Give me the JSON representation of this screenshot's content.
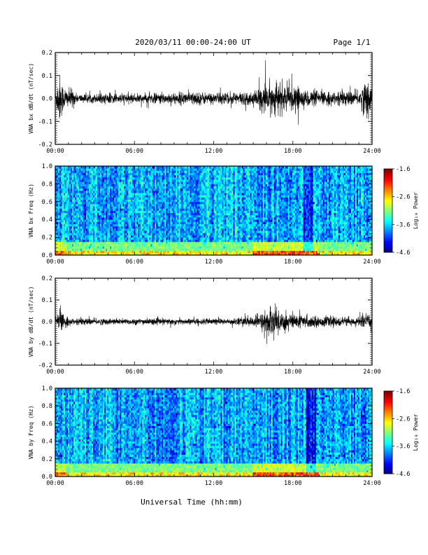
{
  "header": {
    "title": "2020/03/11  00:00-24:00 UT",
    "page": "Page 1/1"
  },
  "xlabel": "Universal Time (hh:mm)",
  "chart_data": [
    {
      "type": "line",
      "ylabel": "VNA bx dB/dt (nT/sec)",
      "ylim": [
        -0.2,
        0.2
      ],
      "yticks": [
        "0.2",
        "0.1",
        "0.0",
        "-0.1",
        "-0.2"
      ],
      "xlim": [
        "00:00",
        "24:00"
      ],
      "xticks": [
        "00:00",
        "06:00",
        "12:00",
        "18:00",
        "24:00"
      ],
      "envelope": {
        "hours": [
          0,
          0.3,
          0.6,
          1.0,
          1.3,
          1.6,
          3,
          5,
          6,
          8,
          10,
          11,
          12,
          13,
          14,
          15,
          15.5,
          16.2,
          17,
          18,
          19,
          20,
          21,
          22,
          23,
          23.7,
          24
        ],
        "amplitude": [
          0.03,
          0.12,
          0.06,
          0.04,
          0.05,
          0.02,
          0.02,
          0.025,
          0.02,
          0.025,
          0.03,
          0.03,
          0.025,
          0.03,
          0.03,
          0.03,
          0.05,
          0.08,
          0.07,
          0.05,
          0.04,
          0.035,
          0.03,
          0.03,
          0.035,
          0.1,
          0.03
        ]
      }
    },
    {
      "type": "heatmap",
      "ylabel": "VNA bx Freq (Hz)",
      "ylim": [
        0.0,
        1.0
      ],
      "yticks": [
        "1.0",
        "0.8",
        "0.6",
        "0.4",
        "0.2",
        "0.0"
      ],
      "xlim": [
        "00:00",
        "24:00"
      ],
      "xticks": [
        "00:00",
        "06:00",
        "12:00",
        "18:00",
        "24:00"
      ],
      "colorbar": {
        "label": "Log₁₀ Power",
        "range": [
          -4.6,
          -1.6
        ],
        "ticks": [
          "-1.6",
          "-2.6",
          "-3.6",
          "-4.6"
        ]
      },
      "dark_band_hours": [
        18.8,
        19.5
      ]
    },
    {
      "type": "line",
      "ylabel": "VNA by dB/dt (nT/sec)",
      "ylim": [
        -0.2,
        0.2
      ],
      "yticks": [
        "0.2",
        "0.1",
        "0.0",
        "-0.1",
        "-0.2"
      ],
      "xlim": [
        "00:00",
        "24:00"
      ],
      "xticks": [
        "00:00",
        "06:00",
        "12:00",
        "18:00",
        "24:00"
      ],
      "envelope": {
        "hours": [
          0,
          0.3,
          0.6,
          1.0,
          1.3,
          3,
          6,
          9,
          12,
          13,
          14,
          15,
          15.5,
          16.2,
          17,
          18,
          19,
          20,
          21,
          22,
          23,
          23.7,
          24
        ],
        "amplitude": [
          0.02,
          0.07,
          0.04,
          0.02,
          0.015,
          0.015,
          0.015,
          0.015,
          0.015,
          0.015,
          0.02,
          0.025,
          0.04,
          0.07,
          0.065,
          0.04,
          0.03,
          0.025,
          0.025,
          0.02,
          0.02,
          0.04,
          0.02
        ]
      }
    },
    {
      "type": "heatmap",
      "ylabel": "VNA by Freq (Hz)",
      "ylim": [
        0.0,
        1.0
      ],
      "yticks": [
        "1.0",
        "0.8",
        "0.6",
        "0.4",
        "0.2",
        "0.0"
      ],
      "xlim": [
        "00:00",
        "24:00"
      ],
      "xticks": [
        "00:00",
        "06:00",
        "12:00",
        "18:00",
        "24:00"
      ],
      "colorbar": {
        "label": "Log₁₀ Power",
        "range": [
          -4.6,
          -1.6
        ],
        "ticks": [
          "-1.6",
          "-2.6",
          "-3.6",
          "-4.6"
        ]
      },
      "dark_band_hours": [
        19.0,
        19.7
      ]
    }
  ]
}
